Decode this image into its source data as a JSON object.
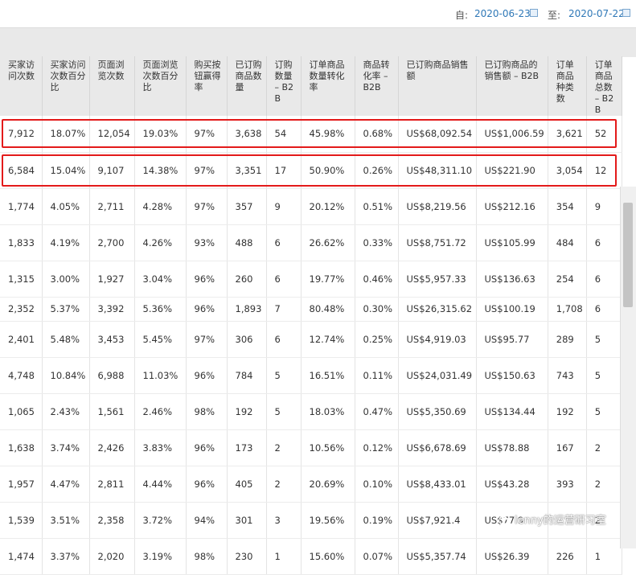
{
  "date_range": {
    "from_label": "自:",
    "from_value": "2020-06-23",
    "to_label": "至:",
    "to_value": "2020-07-22"
  },
  "columns": [
    "买家访问次数",
    "买家访问次数百分比",
    "页面浏览次数",
    "页面浏览次数百分比",
    "购买按钮赢得率",
    "已订购商品数量",
    "订购数量 – B2B",
    "订单商品数量转化率",
    "商品转化率 – B2B",
    "已订购商品销售额",
    "已订购商品的销售额 – B2B",
    "订单商品种类数",
    "订单商品总数 – B2B"
  ],
  "rows": [
    [
      "7,912",
      "18.07%",
      "12,054",
      "19.03%",
      "97%",
      "3,638",
      "54",
      "45.98%",
      "0.68%",
      "US$68,092.54",
      "US$1,006.59",
      "3,621",
      "52"
    ],
    [
      "6,584",
      "15.04%",
      "9,107",
      "14.38%",
      "97%",
      "3,351",
      "17",
      "50.90%",
      "0.26%",
      "US$48,311.10",
      "US$221.90",
      "3,054",
      "12"
    ],
    [
      "1,774",
      "4.05%",
      "2,711",
      "4.28%",
      "97%",
      "357",
      "9",
      "20.12%",
      "0.51%",
      "US$8,219.56",
      "US$212.16",
      "354",
      "9"
    ],
    [
      "1,833",
      "4.19%",
      "2,700",
      "4.26%",
      "93%",
      "488",
      "6",
      "26.62%",
      "0.33%",
      "US$8,751.72",
      "US$105.99",
      "484",
      "6"
    ],
    [
      "1,315",
      "3.00%",
      "1,927",
      "3.04%",
      "96%",
      "260",
      "6",
      "19.77%",
      "0.46%",
      "US$5,957.33",
      "US$136.63",
      "254",
      "6"
    ],
    [
      "2,352",
      "5.37%",
      "3,392",
      "5.36%",
      "96%",
      "1,893",
      "7",
      "80.48%",
      "0.30%",
      "US$26,315.62",
      "US$100.19",
      "1,708",
      "6"
    ],
    [
      "2,401",
      "5.48%",
      "3,453",
      "5.45%",
      "97%",
      "306",
      "6",
      "12.74%",
      "0.25%",
      "US$4,919.03",
      "US$95.77",
      "289",
      "5"
    ],
    [
      "4,748",
      "10.84%",
      "6,988",
      "11.03%",
      "96%",
      "784",
      "5",
      "16.51%",
      "0.11%",
      "US$24,031.49",
      "US$150.63",
      "743",
      "5"
    ],
    [
      "1,065",
      "2.43%",
      "1,561",
      "2.46%",
      "98%",
      "192",
      "5",
      "18.03%",
      "0.47%",
      "US$5,350.69",
      "US$134.44",
      "192",
      "5"
    ],
    [
      "1,638",
      "3.74%",
      "2,426",
      "3.83%",
      "96%",
      "173",
      "2",
      "10.56%",
      "0.12%",
      "US$6,678.69",
      "US$78.88",
      "167",
      "2"
    ],
    [
      "1,957",
      "4.47%",
      "2,811",
      "4.44%",
      "96%",
      "405",
      "2",
      "20.69%",
      "0.10%",
      "US$8,433.01",
      "US$43.28",
      "393",
      "2"
    ],
    [
      "1,539",
      "3.51%",
      "2,358",
      "3.72%",
      "94%",
      "301",
      "3",
      "19.56%",
      "0.19%",
      "US$7,921.4",
      "US$77.9",
      "",
      "2"
    ],
    [
      "1,474",
      "3.37%",
      "2,020",
      "3.19%",
      "98%",
      "230",
      "1",
      "15.60%",
      "0.07%",
      "US$5,357.74",
      "US$26.39",
      "226",
      "1"
    ]
  ],
  "watermark": "lenny的运营研习室",
  "icons": {
    "calendar": "calendar-icon",
    "wechat": "wechat-icon"
  },
  "colors": {
    "highlight_border": "#e31a1a",
    "date_link": "#2f78b7",
    "header_bg": "#e9e9e9"
  }
}
